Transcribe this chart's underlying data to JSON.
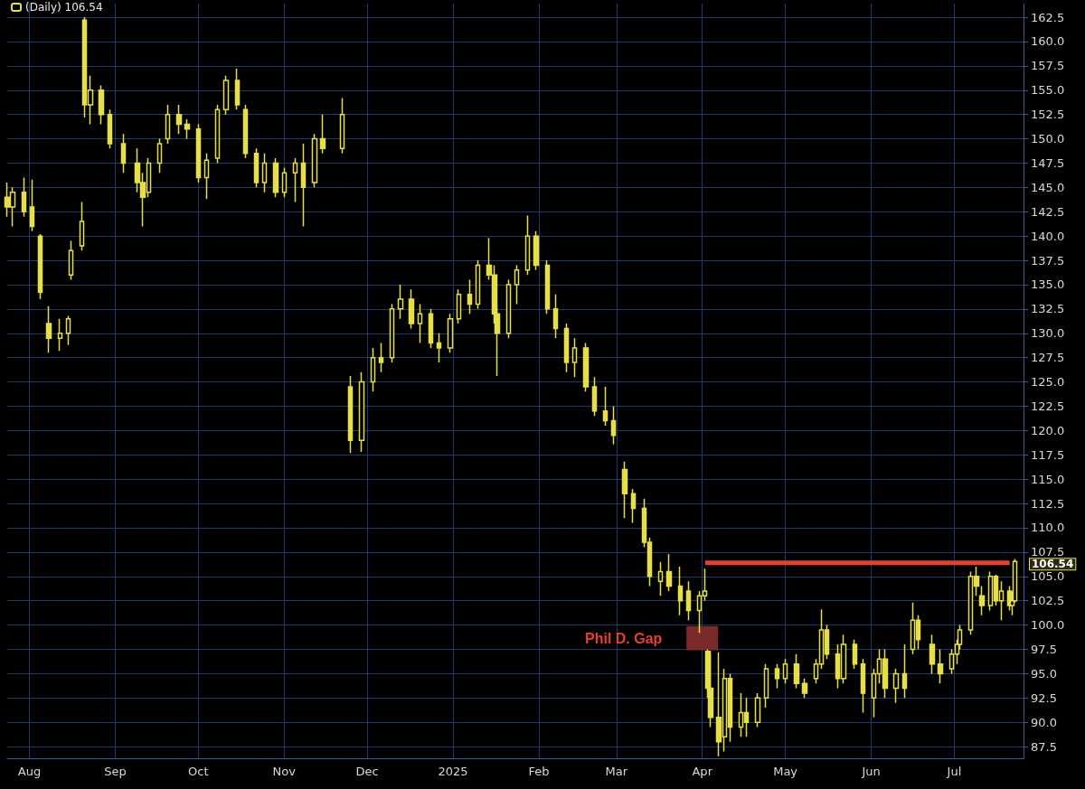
{
  "chart_data": {
    "type": "candlestick",
    "legend": "top left",
    "grid": true,
    "xlim": [
      "2024-07-24",
      "2025-07-26"
    ],
    "xticks": [
      {
        "value": "2024-08-01",
        "label": "Aug"
      },
      {
        "value": "2024-09-01",
        "label": "Sep"
      },
      {
        "value": "2024-10-01",
        "label": "Oct"
      },
      {
        "value": "2024-11-01",
        "label": "Nov"
      },
      {
        "value": "2024-12-01",
        "label": "Dec"
      },
      {
        "value": "2025-01-01",
        "label": "2025"
      },
      {
        "value": "2025-02-01",
        "label": "Feb"
      },
      {
        "value": "2025-03-01",
        "label": "Mar"
      },
      {
        "value": "2025-04-01",
        "label": "Apr"
      },
      {
        "value": "2025-05-01",
        "label": "May"
      },
      {
        "value": "2025-06-01",
        "label": "Jun"
      },
      {
        "value": "2025-07-01",
        "label": "Jul"
      }
    ],
    "ylim": [
      86.3,
      163.9
    ],
    "yticks": [
      87.5,
      {
        "value": 90,
        "label": "90.0"
      },
      92.5,
      {
        "value": 95,
        "label": "95.0"
      },
      97.5,
      {
        "value": 100,
        "label": "100.0"
      },
      102.5,
      {
        "value": 105,
        "label": "105.0"
      },
      107.5,
      {
        "value": 110,
        "label": "110.0"
      },
      112.5,
      {
        "value": 115,
        "label": "115.0"
      },
      117.5,
      {
        "value": 120,
        "label": "120.0"
      },
      122.5,
      {
        "value": 125,
        "label": "125.0"
      },
      127.5,
      {
        "value": 130,
        "label": "130.0"
      },
      132.5,
      {
        "value": 135,
        "label": "135.0"
      },
      137.5,
      {
        "value": 140,
        "label": "140.0"
      },
      142.5,
      {
        "value": 145,
        "label": "145.0"
      },
      147.5,
      {
        "value": 150,
        "label": "150.0"
      },
      152.5,
      {
        "value": 155,
        "label": "155.0"
      },
      157.5,
      {
        "value": 160,
        "label": "160.0"
      },
      162.5
    ],
    "annotations": [
      {
        "text": "Phil D. Gap",
        "x": "2025-03-26",
        "y": 98.6
      },
      {
        "text": "106.54",
        "x": "2025-07-23",
        "y": 106.54
      }
    ],
    "series": [
      {
        "name": "(Daily) 106.54",
        "color": "#e6df4a",
        "x": [
          "2024-07-24",
          "2024-07-26",
          "2024-07-30",
          "2024-08-02",
          "2024-08-05",
          "2024-08-08",
          "2024-08-12",
          "2024-08-15",
          "2024-08-16",
          "2024-08-20",
          "2024-08-21",
          "2024-08-23",
          "2024-08-27",
          "2024-08-30",
          "2024-09-04",
          "2024-09-09",
          "2024-09-11",
          "2024-09-13",
          "2024-09-17",
          "2024-09-20",
          "2024-09-24",
          "2024-09-27",
          "2024-10-01",
          "2024-10-04",
          "2024-10-08",
          "2024-10-11",
          "2024-10-15",
          "2024-10-18",
          "2024-10-22",
          "2024-10-25",
          "2024-10-29",
          "2024-11-01",
          "2024-11-05",
          "2024-11-08",
          "2024-11-12",
          "2024-11-15",
          "2024-11-22",
          "2024-11-25",
          "2024-11-29",
          "2024-12-03",
          "2024-12-06",
          "2024-12-10",
          "2024-12-13",
          "2024-12-17",
          "2024-12-20",
          "2024-12-24",
          "2024-12-27",
          "2024-12-31",
          "2025-01-03",
          "2025-01-07",
          "2025-01-10",
          "2025-01-14",
          "2025-01-16",
          "2025-01-17",
          "2025-01-21",
          "2025-01-24",
          "2025-01-28",
          "2025-01-31",
          "2025-02-04",
          "2025-02-07",
          "2025-02-11",
          "2025-02-14",
          "2025-02-18",
          "2025-02-21",
          "2025-02-25",
          "2025-02-28",
          "2025-03-04",
          "2025-03-07",
          "2025-03-11",
          "2025-03-13",
          "2025-03-17",
          "2025-03-20",
          "2025-03-24",
          "2025-03-27",
          "2025-03-31",
          "2025-04-02",
          "2025-04-03",
          "2025-04-04",
          "2025-04-07",
          "2025-04-09",
          "2025-04-11",
          "2025-04-15",
          "2025-04-17",
          "2025-04-21",
          "2025-04-24",
          "2025-04-28",
          "2025-05-01",
          "2025-05-05",
          "2025-05-08",
          "2025-05-12",
          "2025-05-14",
          "2025-05-16",
          "2025-05-20",
          "2025-05-22",
          "2025-05-26",
          "2025-05-29",
          "2025-06-02",
          "2025-06-04",
          "2025-06-06",
          "2025-06-10",
          "2025-06-13",
          "2025-06-16",
          "2025-06-18",
          "2025-06-23",
          "2025-06-26",
          "2025-06-30",
          "2025-07-02",
          "2025-07-03",
          "2025-07-07",
          "2025-07-09",
          "2025-07-11",
          "2025-07-14",
          "2025-07-16",
          "2025-07-18",
          "2025-07-21",
          "2025-07-22",
          "2025-07-23"
        ],
        "ohlc": [
          [
            144,
            145.5,
            142,
            143
          ],
          [
            143,
            145,
            141,
            144.5
          ],
          [
            144.5,
            146,
            142,
            142.5
          ],
          [
            143,
            145.8,
            140.5,
            141
          ],
          [
            140,
            140.2,
            133.5,
            134.2
          ],
          [
            131,
            132.8,
            128,
            129.5
          ],
          [
            129.5,
            131.5,
            128.2,
            130
          ],
          [
            130,
            131.8,
            128.8,
            131.5
          ],
          [
            136,
            139.5,
            135.5,
            138.5
          ],
          [
            139,
            143.5,
            138.5,
            141.5
          ],
          [
            162.2,
            162.5,
            152.2,
            153.5
          ],
          [
            153.5,
            156.5,
            151.5,
            155
          ],
          [
            155,
            155.5,
            151.5,
            152.5
          ],
          [
            152.5,
            153,
            149,
            149.5
          ],
          [
            149.5,
            150.5,
            146.5,
            147.5
          ],
          [
            147.5,
            149,
            144.5,
            145.5
          ],
          [
            145.5,
            146.5,
            141,
            144
          ],
          [
            144.5,
            148,
            144,
            147.5
          ],
          [
            147.5,
            150,
            146.5,
            149.5
          ],
          [
            150,
            153.5,
            149.5,
            152.5
          ],
          [
            152.5,
            153.5,
            150.5,
            151.5
          ],
          [
            151.5,
            152,
            150,
            151
          ],
          [
            151,
            151.5,
            145.5,
            146
          ],
          [
            146,
            148.5,
            143.8,
            147.8
          ],
          [
            148,
            153.5,
            147.5,
            153
          ],
          [
            153,
            156.5,
            152.5,
            156
          ],
          [
            156,
            157.2,
            153,
            153.5
          ],
          [
            153,
            153.5,
            148,
            148.5
          ],
          [
            148.5,
            149,
            145,
            145.5
          ],
          [
            145.5,
            148.5,
            144.5,
            147.5
          ],
          [
            147.5,
            148,
            144,
            144.5
          ],
          [
            144.5,
            147,
            144,
            146.5
          ],
          [
            146.5,
            148,
            143.5,
            147.5
          ],
          [
            147.5,
            149.5,
            141,
            145
          ],
          [
            145.5,
            150.5,
            145,
            150
          ],
          [
            150,
            152.5,
            148.5,
            149
          ],
          [
            149,
            154.2,
            148.5,
            152.5
          ],
          [
            124.5,
            125.6,
            117.7,
            119
          ],
          [
            119,
            126,
            117.8,
            125
          ],
          [
            125,
            128.5,
            124,
            127.5
          ],
          [
            127.5,
            129,
            126,
            127
          ],
          [
            127.5,
            133,
            127,
            132.5
          ],
          [
            132.5,
            135,
            131.5,
            133.5
          ],
          [
            133.5,
            134.5,
            130.5,
            131
          ],
          [
            131,
            133,
            129,
            132
          ],
          [
            132,
            132.5,
            128.5,
            129
          ],
          [
            129,
            130,
            127,
            128.5
          ],
          [
            128.5,
            132,
            128,
            131.5
          ],
          [
            131.5,
            134.5,
            131,
            134
          ],
          [
            134,
            135.5,
            132,
            133
          ],
          [
            133,
            137.5,
            132.5,
            137
          ],
          [
            137,
            139.8,
            135.5,
            136
          ],
          [
            136,
            137,
            131,
            132
          ],
          [
            132,
            132.5,
            125.6,
            130
          ],
          [
            130,
            135.5,
            129.5,
            135
          ],
          [
            135,
            137,
            133,
            136.5
          ],
          [
            136.5,
            142.1,
            136,
            140
          ],
          [
            140,
            140.5,
            136.5,
            137
          ],
          [
            137,
            137.5,
            132,
            132.5
          ],
          [
            132.5,
            134,
            129.5,
            130.5
          ],
          [
            130.5,
            131,
            126,
            127
          ],
          [
            127,
            129.5,
            125.5,
            128.5
          ],
          [
            128.5,
            129,
            124,
            124.5
          ],
          [
            124.5,
            125.5,
            121.5,
            122
          ],
          [
            122,
            124.5,
            120.5,
            121
          ],
          [
            121,
            122.5,
            118.6,
            119.5
          ],
          [
            116,
            116.8,
            111,
            113.5
          ],
          [
            113.5,
            114,
            110.5,
            112
          ],
          [
            112,
            113,
            108,
            108.5
          ],
          [
            108.5,
            109,
            104,
            105
          ],
          [
            104.5,
            106.5,
            103,
            105.5
          ],
          [
            105.5,
            107.3,
            103.5,
            104
          ],
          [
            104,
            106,
            101,
            102.5
          ],
          [
            103.5,
            104.5,
            100.5,
            101.5
          ],
          [
            101.5,
            103.5,
            99.2,
            103
          ],
          [
            103,
            105.8,
            102.5,
            103.5
          ],
          [
            97.3,
            97.5,
            92.5,
            93.5
          ],
          [
            93.5,
            97,
            89.5,
            90.5
          ],
          [
            90.5,
            97.2,
            86.5,
            88
          ],
          [
            88.5,
            95.5,
            87,
            94.5
          ],
          [
            94.5,
            95,
            88,
            89.5
          ],
          [
            89.5,
            93,
            88.5,
            91
          ],
          [
            91,
            92.5,
            88.5,
            90
          ],
          [
            90,
            93,
            89.5,
            92.5
          ],
          [
            92.5,
            96,
            91.5,
            95.5
          ],
          [
            95.5,
            96,
            93.5,
            94.5
          ],
          [
            94.5,
            96.5,
            94,
            96
          ],
          [
            96,
            97,
            93.5,
            94
          ],
          [
            94,
            94.5,
            92.5,
            93
          ],
          [
            94.5,
            96.5,
            94,
            96
          ],
          [
            96,
            101.6,
            95.5,
            99.5
          ],
          [
            99.5,
            100,
            96.5,
            97
          ],
          [
            97,
            98,
            93.5,
            94.5
          ],
          [
            94.5,
            99,
            94,
            98
          ],
          [
            98,
            98.5,
            95.5,
            96
          ],
          [
            96,
            96.5,
            91,
            93
          ],
          [
            92.5,
            95.5,
            90.5,
            95
          ],
          [
            95,
            97.5,
            94,
            96.5
          ],
          [
            96.5,
            97.5,
            92.5,
            93.5
          ],
          [
            93.5,
            95.5,
            92,
            95
          ],
          [
            95,
            98,
            92.5,
            93.5
          ],
          [
            97.5,
            102.3,
            97,
            100.5
          ],
          [
            100.5,
            101,
            97.5,
            98.5
          ],
          [
            98,
            99,
            95,
            96
          ],
          [
            96,
            97.5,
            94,
            95
          ],
          [
            95.5,
            97.5,
            95,
            97
          ],
          [
            97,
            98.5,
            96,
            98
          ],
          [
            98,
            100,
            97.5,
            99.5
          ],
          [
            99.5,
            105.5,
            99,
            105
          ],
          [
            105,
            106,
            103,
            104
          ],
          [
            103,
            104,
            101,
            102
          ],
          [
            102,
            105.5,
            101.5,
            105
          ],
          [
            105,
            105.2,
            102,
            102.5
          ],
          [
            102.5,
            104.5,
            100.5,
            103.5
          ],
          [
            103.5,
            104,
            101.5,
            102
          ],
          [
            102,
            103.5,
            101,
            102.5
          ],
          [
            102.5,
            106.8,
            102.3,
            106.54
          ]
        ]
      },
      {
        "type": "line",
        "color": "#e8402e",
        "x": [
          "2025-04-02",
          "2025-07-21"
        ],
        "values": [
          106.4,
          106.4
        ]
      },
      {
        "type": "bar",
        "color": "#7a2a2a",
        "x": [
          "2025-04-01"
        ],
        "values": [
          2.5
        ],
        "base": [
          97.4
        ]
      }
    ]
  }
}
